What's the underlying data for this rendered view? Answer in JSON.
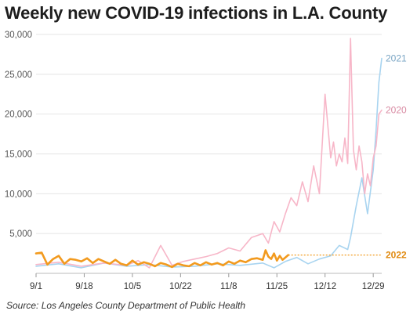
{
  "title": "Weekly new COVID-19 infections in L.A. County",
  "source": "Source: Los Angeles County Department of Public Health",
  "chart_data": {
    "type": "line",
    "title": "Weekly new COVID-19 infections in L.A. County",
    "xlabel": "",
    "ylabel": "",
    "ylim": [
      0,
      30000
    ],
    "yticks": [
      5000,
      10000,
      15000,
      20000,
      25000,
      30000
    ],
    "ytick_labels": [
      "5,000",
      "10,000",
      "15,000",
      "20,000",
      "25,000",
      "30,000"
    ],
    "xlim": [
      0,
      122
    ],
    "xticks": [
      0,
      17,
      34,
      51,
      68,
      85,
      102,
      119
    ],
    "xtick_labels": [
      "9/1",
      "9/18",
      "10/5",
      "10/22",
      "11/8",
      "11/25",
      "12/12",
      "12/29"
    ],
    "grid": true,
    "series": [
      {
        "name": "2021",
        "color": "#a8d4f0",
        "x": [
          0,
          8,
          16,
          24,
          32,
          40,
          48,
          56,
          64,
          72,
          80,
          84,
          88,
          92,
          96,
          100,
          104,
          107,
          110,
          111,
          113,
          115,
          117,
          119,
          120,
          121,
          122
        ],
        "y": [
          900,
          1200,
          700,
          1300,
          900,
          1100,
          800,
          900,
          1200,
          1000,
          1300,
          700,
          1500,
          2000,
          1200,
          1800,
          2200,
          3500,
          3000,
          4500,
          8500,
          12000,
          7500,
          13000,
          18000,
          24000,
          27000
        ]
      },
      {
        "name": "2020",
        "color": "#f7b6c8",
        "x": [
          0,
          8,
          16,
          24,
          32,
          36,
          40,
          44,
          48,
          52,
          56,
          60,
          64,
          68,
          72,
          76,
          80,
          82,
          84,
          86,
          88,
          90,
          92,
          94,
          96,
          98,
          100,
          102,
          104,
          105,
          106,
          107,
          108,
          109,
          110,
          111,
          112,
          113,
          114,
          115,
          116,
          117,
          118,
          119,
          120,
          121,
          122
        ],
        "y": [
          1100,
          1400,
          900,
          1300,
          1000,
          1600,
          700,
          3500,
          1000,
          1500,
          1800,
          2100,
          2500,
          3200,
          2800,
          4500,
          5000,
          3800,
          6500,
          5200,
          7500,
          9500,
          8500,
          11500,
          9000,
          13500,
          10000,
          22500,
          14500,
          16500,
          13500,
          15000,
          14000,
          17000,
          13800,
          29500,
          15500,
          13000,
          16000,
          14000,
          10000,
          12500,
          11000,
          14500,
          16000,
          20000,
          20500
        ]
      },
      {
        "name": "2022",
        "color": "#f29a1e",
        "x": [
          0,
          2,
          4,
          6,
          8,
          10,
          12,
          14,
          16,
          18,
          20,
          22,
          24,
          26,
          28,
          30,
          32,
          34,
          36,
          38,
          40,
          42,
          44,
          46,
          48,
          50,
          52,
          54,
          56,
          58,
          60,
          62,
          64,
          66,
          68,
          70,
          72,
          74,
          76,
          78,
          80,
          81,
          82,
          83,
          84,
          85,
          86,
          87,
          88,
          89
        ],
        "y": [
          2500,
          2600,
          1100,
          1800,
          2200,
          1200,
          1800,
          1700,
          1500,
          1900,
          1300,
          1800,
          1500,
          1200,
          1700,
          1200,
          1000,
          1600,
          1100,
          1400,
          1200,
          900,
          1300,
          1100,
          800,
          1200,
          1000,
          900,
          1300,
          1000,
          1400,
          1100,
          1300,
          1000,
          1500,
          1200,
          1600,
          1400,
          1800,
          1900,
          1700,
          2900,
          2100,
          1800,
          2500,
          1600,
          2200,
          1700,
          2000,
          2300
        ]
      }
    ],
    "annotations": [
      {
        "type": "dotted-extension",
        "series": "2022",
        "value": 2300
      }
    ]
  }
}
